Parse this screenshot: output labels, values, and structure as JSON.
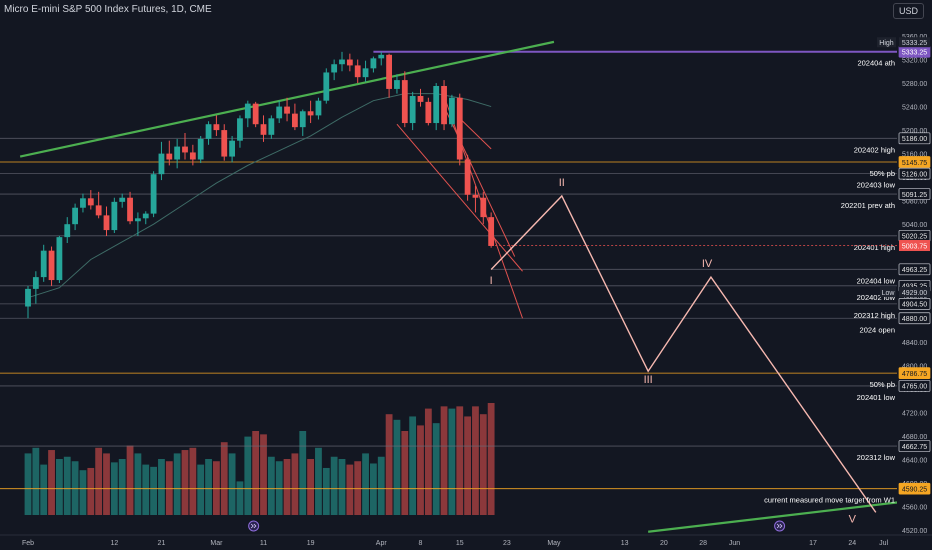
{
  "header": {
    "title": "Micro E-mini S&P 500 Index Futures, 1D, CME",
    "currency": "USD"
  },
  "colors": {
    "background": "#131722",
    "up": "#26a69a",
    "down": "#ef5350",
    "trend": "#4caf50",
    "purple": "#7e57c2",
    "orange": "#f5a623",
    "wave": "#f6b8b0",
    "downtrend": "#e0524f",
    "ma": "#3e6b66"
  },
  "chart_data": {
    "type": "candlestick",
    "y_ticks": [
      4520,
      4560,
      4600,
      4640,
      4680,
      4720,
      4760,
      4800,
      4840,
      4880,
      4920,
      4960,
      5000,
      5040,
      5080,
      5120,
      5160,
      5200,
      5240,
      5280,
      5320,
      5360
    ],
    "y_range": [
      4510,
      5370
    ],
    "x_labels": [
      {
        "label": "Feb",
        "bar": 0
      },
      {
        "label": "12",
        "bar": 11
      },
      {
        "label": "21",
        "bar": 17
      },
      {
        "label": "Mar",
        "bar": 24
      },
      {
        "label": "11",
        "bar": 30
      },
      {
        "label": "19",
        "bar": 36
      },
      {
        "label": "Apr",
        "bar": 45
      },
      {
        "label": "8",
        "bar": 50
      },
      {
        "label": "15",
        "bar": 55
      },
      {
        "label": "23",
        "bar": 61
      },
      {
        "label": "May",
        "bar": 67
      },
      {
        "label": "13",
        "bar": 76
      },
      {
        "label": "20",
        "bar": 81
      },
      {
        "label": "28",
        "bar": 86
      },
      {
        "label": "Jun",
        "bar": 90
      },
      {
        "label": "17",
        "bar": 100
      },
      {
        "label": "24",
        "bar": 105
      },
      {
        "label": "Jul",
        "bar": 109
      }
    ],
    "candles": [
      {
        "o": 4900,
        "h": 4935,
        "l": 4880,
        "c": 4930
      },
      {
        "o": 4930,
        "h": 4960,
        "l": 4905,
        "c": 4950
      },
      {
        "o": 4950,
        "h": 5005,
        "l": 4942,
        "c": 4995
      },
      {
        "o": 4995,
        "h": 5002,
        "l": 4935,
        "c": 4945
      },
      {
        "o": 4945,
        "h": 5020,
        "l": 4940,
        "c": 5018
      },
      {
        "o": 5018,
        "h": 5052,
        "l": 5008,
        "c": 5040
      },
      {
        "o": 5040,
        "h": 5075,
        "l": 5030,
        "c": 5068
      },
      {
        "o": 5068,
        "h": 5092,
        "l": 5060,
        "c": 5084
      },
      {
        "o": 5084,
        "h": 5098,
        "l": 5065,
        "c": 5072
      },
      {
        "o": 5072,
        "h": 5095,
        "l": 5050,
        "c": 5055
      },
      {
        "o": 5055,
        "h": 5070,
        "l": 5020,
        "c": 5030
      },
      {
        "o": 5030,
        "h": 5085,
        "l": 5025,
        "c": 5078
      },
      {
        "o": 5078,
        "h": 5092,
        "l": 5068,
        "c": 5085
      },
      {
        "o": 5085,
        "h": 5095,
        "l": 5040,
        "c": 5045
      },
      {
        "o": 5045,
        "h": 5060,
        "l": 5020,
        "c": 5050
      },
      {
        "o": 5050,
        "h": 5062,
        "l": 5040,
        "c": 5058
      },
      {
        "o": 5058,
        "h": 5130,
        "l": 5052,
        "c": 5125
      },
      {
        "o": 5125,
        "h": 5180,
        "l": 5115,
        "c": 5160
      },
      {
        "o": 5160,
        "h": 5182,
        "l": 5140,
        "c": 5150
      },
      {
        "o": 5150,
        "h": 5185,
        "l": 5135,
        "c": 5172
      },
      {
        "o": 5172,
        "h": 5195,
        "l": 5150,
        "c": 5162
      },
      {
        "o": 5162,
        "h": 5175,
        "l": 5140,
        "c": 5150
      },
      {
        "o": 5150,
        "h": 5190,
        "l": 5144,
        "c": 5185
      },
      {
        "o": 5185,
        "h": 5215,
        "l": 5175,
        "c": 5210
      },
      {
        "o": 5210,
        "h": 5225,
        "l": 5190,
        "c": 5200
      },
      {
        "o": 5200,
        "h": 5210,
        "l": 5148,
        "c": 5155
      },
      {
        "o": 5155,
        "h": 5190,
        "l": 5145,
        "c": 5182
      },
      {
        "o": 5182,
        "h": 5225,
        "l": 5170,
        "c": 5220
      },
      {
        "o": 5220,
        "h": 5250,
        "l": 5205,
        "c": 5245
      },
      {
        "o": 5245,
        "h": 5248,
        "l": 5205,
        "c": 5210
      },
      {
        "o": 5210,
        "h": 5225,
        "l": 5180,
        "c": 5192
      },
      {
        "o": 5192,
        "h": 5225,
        "l": 5185,
        "c": 5220
      },
      {
        "o": 5220,
        "h": 5250,
        "l": 5212,
        "c": 5240
      },
      {
        "o": 5240,
        "h": 5255,
        "l": 5215,
        "c": 5228
      },
      {
        "o": 5228,
        "h": 5245,
        "l": 5200,
        "c": 5205
      },
      {
        "o": 5205,
        "h": 5235,
        "l": 5190,
        "c": 5232
      },
      {
        "o": 5232,
        "h": 5250,
        "l": 5212,
        "c": 5225
      },
      {
        "o": 5225,
        "h": 5255,
        "l": 5218,
        "c": 5250
      },
      {
        "o": 5250,
        "h": 5305,
        "l": 5245,
        "c": 5298
      },
      {
        "o": 5298,
        "h": 5320,
        "l": 5285,
        "c": 5312
      },
      {
        "o": 5312,
        "h": 5333,
        "l": 5300,
        "c": 5320
      },
      {
        "o": 5320,
        "h": 5330,
        "l": 5300,
        "c": 5310
      },
      {
        "o": 5310,
        "h": 5320,
        "l": 5280,
        "c": 5290
      },
      {
        "o": 5290,
        "h": 5318,
        "l": 5282,
        "c": 5305
      },
      {
        "o": 5305,
        "h": 5325,
        "l": 5298,
        "c": 5322
      },
      {
        "o": 5322,
        "h": 5333,
        "l": 5310,
        "c": 5328
      },
      {
        "o": 5328,
        "h": 5330,
        "l": 5255,
        "c": 5270
      },
      {
        "o": 5270,
        "h": 5295,
        "l": 5262,
        "c": 5285
      },
      {
        "o": 5285,
        "h": 5300,
        "l": 5205,
        "c": 5212
      },
      {
        "o": 5212,
        "h": 5265,
        "l": 5200,
        "c": 5258
      },
      {
        "o": 5258,
        "h": 5270,
        "l": 5240,
        "c": 5248
      },
      {
        "o": 5248,
        "h": 5255,
        "l": 5208,
        "c": 5212
      },
      {
        "o": 5212,
        "h": 5280,
        "l": 5200,
        "c": 5275
      },
      {
        "o": 5275,
        "h": 5285,
        "l": 5200,
        "c": 5210
      },
      {
        "o": 5210,
        "h": 5260,
        "l": 5205,
        "c": 5255
      },
      {
        "o": 5255,
        "h": 5262,
        "l": 5140,
        "c": 5150
      },
      {
        "o": 5150,
        "h": 5158,
        "l": 5080,
        "c": 5090
      },
      {
        "o": 5090,
        "h": 5105,
        "l": 5060,
        "c": 5085
      },
      {
        "o": 5085,
        "h": 5095,
        "l": 5040,
        "c": 5052
      },
      {
        "o": 5052,
        "h": 5060,
        "l": 5000,
        "c": 5003
      }
    ],
    "volume": [
      0.55,
      0.6,
      0.45,
      0.58,
      0.5,
      0.52,
      0.48,
      0.4,
      0.42,
      0.6,
      0.55,
      0.47,
      0.5,
      0.62,
      0.55,
      0.45,
      0.43,
      0.5,
      0.48,
      0.55,
      0.58,
      0.6,
      0.45,
      0.5,
      0.48,
      0.65,
      0.55,
      0.3,
      0.7,
      0.75,
      0.72,
      0.52,
      0.48,
      0.5,
      0.55,
      0.75,
      0.5,
      0.6,
      0.42,
      0.52,
      0.5,
      0.45,
      0.48,
      0.55,
      0.46,
      0.52,
      0.9,
      0.85,
      0.75,
      0.88,
      0.8,
      0.95,
      0.82,
      0.97,
      0.95,
      0.97,
      0.88,
      0.97,
      0.9,
      1.0
    ],
    "ma": [
      [
        0,
        4915
      ],
      [
        4,
        4932
      ],
      [
        8,
        4980
      ],
      [
        12,
        5010
      ],
      [
        16,
        5040
      ],
      [
        20,
        5075
      ],
      [
        24,
        5110
      ],
      [
        28,
        5140
      ],
      [
        32,
        5165
      ],
      [
        36,
        5190
      ],
      [
        40,
        5222
      ],
      [
        44,
        5250
      ],
      [
        48,
        5262
      ],
      [
        52,
        5262
      ],
      [
        56,
        5252
      ],
      [
        59,
        5240
      ]
    ],
    "levels": [
      {
        "price": 5333.25,
        "label": "202404 ath",
        "tag": "5333.25",
        "tag_style": "purple",
        "line": "purple",
        "x_start_bar": 44
      },
      {
        "price": 5186.0,
        "label": "202402 high",
        "tag": "5186.00",
        "tag_style": "box",
        "line": "gray"
      },
      {
        "price": 5145.75,
        "label": "50% pb",
        "tag": "5145.75",
        "tag_style": "orange",
        "line": "orange"
      },
      {
        "price": 5126.0,
        "label": "202403 low",
        "tag": "5126.00",
        "tag_style": "box",
        "line": "gray"
      },
      {
        "price": 5091.25,
        "label": "202201 prev ath",
        "tag": "5091.25",
        "tag_style": "box",
        "line": "gray"
      },
      {
        "price": 5020.25,
        "label": "202401 high",
        "tag": "5020.25",
        "tag_style": "box",
        "line": "gray"
      },
      {
        "price": 4963.25,
        "label": "202404 low",
        "tag": "4963.25",
        "tag_style": "box",
        "line": "gray",
        "x_start_bar": 59
      },
      {
        "price": 4935.25,
        "label": "202402 low",
        "tag": "4935.25",
        "tag_style": "box",
        "line": "gray"
      },
      {
        "price": 4904.5,
        "label": "202312 high",
        "tag": "4904.50",
        "tag_style": "box",
        "line": "gray"
      },
      {
        "price": 4880.0,
        "label": "2024 open",
        "tag": "4880.00",
        "tag_style": "box",
        "line": "gray"
      },
      {
        "price": 4786.75,
        "label": "50% pb",
        "tag": "4786.75",
        "tag_style": "orange",
        "line": "orange"
      },
      {
        "price": 4765.0,
        "label": "202401 low",
        "tag": "4765.00",
        "tag_style": "box",
        "line": "gray"
      },
      {
        "price": 4662.75,
        "label": "202312 low",
        "tag": "4662.75",
        "tag_style": "box",
        "line": "gray"
      },
      {
        "price": 4590.25,
        "label": "current measured move target from W1",
        "tag": "4590.25",
        "tag_style": "orange",
        "line": "orange"
      }
    ],
    "badges": {
      "high_label": "High",
      "high_value": "5333.25",
      "low_label": "Low",
      "low_value": "4929.00",
      "last_price": "5003.75",
      "last_price_value": 5003.75
    },
    "wave_path": [
      [
        59,
        4963
      ],
      [
        68,
        5088
      ],
      [
        79,
        4790
      ],
      [
        87,
        4950
      ],
      [
        108,
        4550
      ]
    ],
    "wave_labels": [
      {
        "text": "I",
        "bar": 59,
        "price": 4938
      },
      {
        "text": "II",
        "bar": 68,
        "price": 5105
      },
      {
        "text": "III",
        "bar": 79,
        "price": 4770
      },
      {
        "text": "IV",
        "bar": 86.5,
        "price": 4967
      },
      {
        "text": "V",
        "bar": 105,
        "price": 4533
      }
    ],
    "trendlines": {
      "upper_green": [
        [
          -1,
          5155
        ],
        [
          67,
          5350
        ]
      ],
      "lower_green": [
        [
          79,
          4517
        ],
        [
          114,
          4572
        ]
      ],
      "red_lines": [
        [
          [
            53,
            5240
          ],
          [
            62,
            4985
          ]
        ],
        [
          [
            53,
            5258
          ],
          [
            63,
            4880
          ]
        ],
        [
          [
            47,
            5210
          ],
          [
            63,
            4960
          ]
        ],
        [
          [
            55,
            5220
          ],
          [
            59,
            5168
          ]
        ]
      ]
    }
  }
}
